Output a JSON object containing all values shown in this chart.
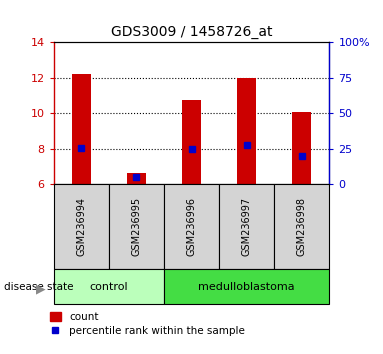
{
  "title": "GDS3009 / 1458726_at",
  "samples": [
    "GSM236994",
    "GSM236995",
    "GSM236996",
    "GSM236997",
    "GSM236998"
  ],
  "red_values": [
    12.2,
    6.65,
    10.75,
    12.0,
    10.1
  ],
  "blue_values_pct": [
    25.5,
    5.0,
    25.0,
    27.5,
    20.0
  ],
  "y_min": 6,
  "y_max": 14,
  "y_ticks": [
    6,
    8,
    10,
    12,
    14
  ],
  "y_right_ticks": [
    0,
    25,
    50,
    75,
    100
  ],
  "bar_color": "#cc0000",
  "blue_color": "#0000cc",
  "bar_width": 0.35,
  "groups": [
    {
      "label": "control",
      "samples": [
        0,
        1
      ],
      "color": "#bbffbb"
    },
    {
      "label": "medulloblastoma",
      "samples": [
        2,
        3,
        4
      ],
      "color": "#44dd44"
    }
  ],
  "group_label": "disease state",
  "legend_count": "count",
  "legend_pct": "percentile rank within the sample",
  "axis_left_color": "#cc0000",
  "axis_right_color": "#0000cc",
  "sample_bg_color": "#d4d4d4",
  "plot_bg": "#ffffff"
}
